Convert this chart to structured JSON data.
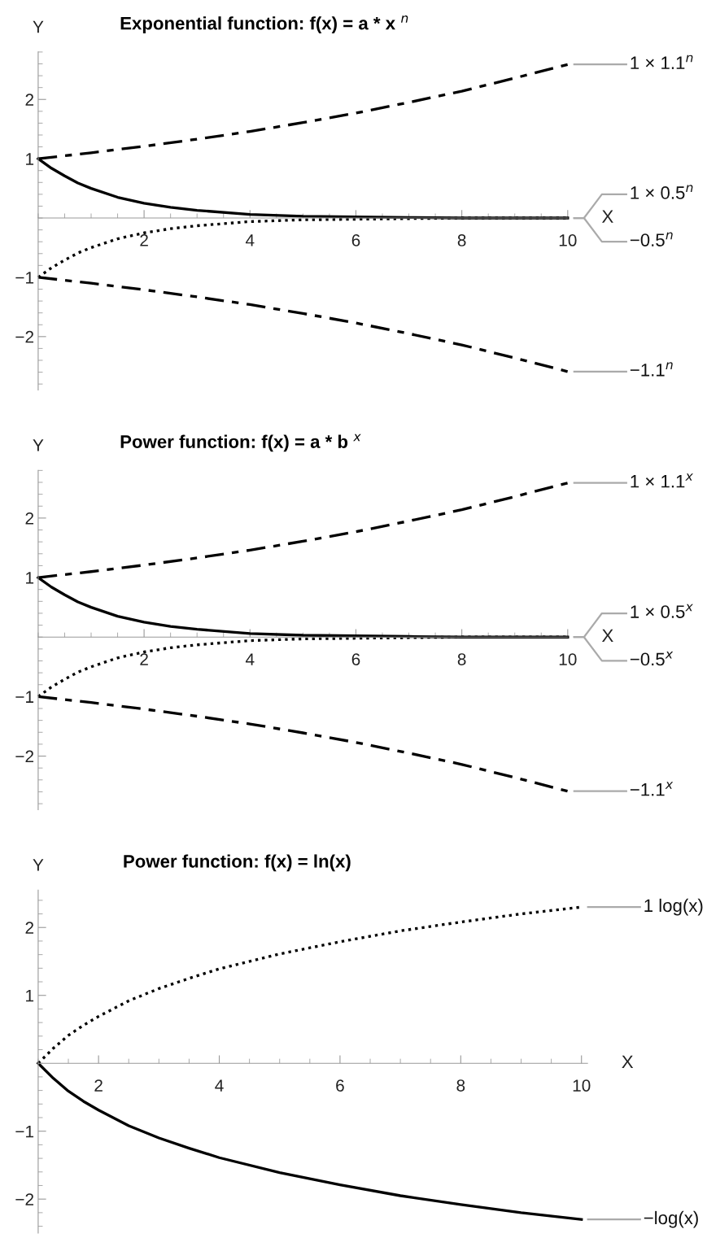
{
  "chart_data": [
    {
      "type": "line",
      "title": "Exponential function: f(x) = a * x $^{n}$",
      "xlabel": "X",
      "ylabel": "Y",
      "xlim": [
        0,
        10
      ],
      "ylim": [
        -2.9,
        2.8
      ],
      "xticks": [
        2,
        4,
        6,
        8,
        10
      ],
      "yticks": [
        -2,
        -1,
        1,
        2
      ],
      "series": [
        {
          "name": "1 × 1.1$^{n}$",
          "color": "#000000",
          "line_style": "dashed",
          "x": [
            0,
            1,
            2,
            3,
            4,
            5,
            6,
            7,
            8,
            9,
            10
          ],
          "values": [
            1,
            1.1,
            1.21,
            1.33,
            1.46,
            1.61,
            1.77,
            1.95,
            2.14,
            2.36,
            2.59
          ]
        },
        {
          "name": "1 × 0.5$^{n}$",
          "color": "#000000",
          "line_style": "solid",
          "x": [
            0,
            0.25,
            0.5,
            0.75,
            1,
            1.5,
            2,
            2.5,
            3,
            4,
            5,
            6,
            7,
            8,
            10
          ],
          "values": [
            1,
            0.84,
            0.71,
            0.59,
            0.5,
            0.35,
            0.25,
            0.18,
            0.13,
            0.06,
            0.03,
            0.02,
            0.01,
            0,
            0
          ]
        },
        {
          "name": "−0.5$^{n}$",
          "color": "#000000",
          "line_style": "dotted",
          "x": [
            0,
            0.25,
            0.5,
            0.75,
            1,
            1.5,
            2,
            2.5,
            3,
            4,
            5,
            6,
            7,
            8,
            10
          ],
          "values": [
            -1,
            -0.84,
            -0.71,
            -0.59,
            -0.5,
            -0.35,
            -0.25,
            -0.18,
            -0.13,
            -0.06,
            -0.03,
            -0.02,
            -0.01,
            0,
            0
          ]
        },
        {
          "name": "−1.1$^{n}$",
          "color": "#000000",
          "line_style": "dashed",
          "x": [
            0,
            1,
            2,
            3,
            4,
            5,
            6,
            7,
            8,
            9,
            10
          ],
          "values": [
            -1,
            -1.1,
            -1.21,
            -1.33,
            -1.46,
            -1.61,
            -1.77,
            -1.95,
            -2.14,
            -2.36,
            -2.59
          ]
        }
      ]
    },
    {
      "type": "line",
      "title": "Power function: f(x) = a * b $^{x}$",
      "xlabel": "X",
      "ylabel": "Y",
      "xlim": [
        0,
        10
      ],
      "ylim": [
        -2.9,
        2.8
      ],
      "xticks": [
        2,
        4,
        6,
        8,
        10
      ],
      "yticks": [
        -2,
        -1,
        1,
        2
      ],
      "series": [
        {
          "name": "1 × 1.1$^{x}$",
          "color": "#000000",
          "line_style": "dashed",
          "x": [
            0,
            1,
            2,
            3,
            4,
            5,
            6,
            7,
            8,
            9,
            10
          ],
          "values": [
            1,
            1.1,
            1.21,
            1.33,
            1.46,
            1.61,
            1.77,
            1.95,
            2.14,
            2.36,
            2.59
          ]
        },
        {
          "name": "1 × 0.5$^{x}$",
          "color": "#000000",
          "line_style": "solid",
          "x": [
            0,
            0.25,
            0.5,
            0.75,
            1,
            1.5,
            2,
            2.5,
            3,
            4,
            5,
            6,
            7,
            8,
            10
          ],
          "values": [
            1,
            0.84,
            0.71,
            0.59,
            0.5,
            0.35,
            0.25,
            0.18,
            0.13,
            0.06,
            0.03,
            0.02,
            0.01,
            0,
            0
          ]
        },
        {
          "name": "−0.5$^{x}$",
          "color": "#000000",
          "line_style": "dotted",
          "x": [
            0,
            0.25,
            0.5,
            0.75,
            1,
            1.5,
            2,
            2.5,
            3,
            4,
            5,
            6,
            7,
            8,
            10
          ],
          "values": [
            -1,
            -0.84,
            -0.71,
            -0.59,
            -0.5,
            -0.35,
            -0.25,
            -0.18,
            -0.13,
            -0.06,
            -0.03,
            -0.02,
            -0.01,
            0,
            0
          ]
        },
        {
          "name": "−1.1$^{x}$",
          "color": "#000000",
          "line_style": "dashed",
          "x": [
            0,
            1,
            2,
            3,
            4,
            5,
            6,
            7,
            8,
            9,
            10
          ],
          "values": [
            -1,
            -1.1,
            -1.21,
            -1.33,
            -1.46,
            -1.61,
            -1.77,
            -1.95,
            -2.14,
            -2.36,
            -2.59
          ]
        }
      ]
    },
    {
      "type": "line",
      "title": "Power function: f(x) = ln(x)",
      "xlabel": "X",
      "ylabel": "Y",
      "xlim": [
        1,
        10.1
      ],
      "ylim": [
        -2.5,
        2.55
      ],
      "xticks": [
        2,
        4,
        6,
        8,
        10
      ],
      "yticks": [
        -2,
        -1,
        1,
        2
      ],
      "series": [
        {
          "name": "1 log(x)",
          "color": "#000000",
          "line_style": "dotted",
          "x": [
            1,
            1.25,
            1.5,
            1.75,
            2,
            2.5,
            3,
            3.5,
            4,
            5,
            6,
            7,
            8,
            9,
            10
          ],
          "values": [
            0,
            0.22,
            0.41,
            0.56,
            0.69,
            0.92,
            1.1,
            1.25,
            1.39,
            1.61,
            1.79,
            1.95,
            2.08,
            2.2,
            2.3
          ]
        },
        {
          "name": "−log(x)",
          "color": "#000000",
          "line_style": "solid",
          "x": [
            1,
            1.25,
            1.5,
            1.75,
            2,
            2.5,
            3,
            3.5,
            4,
            5,
            6,
            7,
            8,
            9,
            10
          ],
          "values": [
            0,
            -0.22,
            -0.41,
            -0.56,
            -0.69,
            -0.92,
            -1.1,
            -1.25,
            -1.39,
            -1.61,
            -1.79,
            -1.95,
            -2.08,
            -2.2,
            -2.3
          ]
        }
      ]
    }
  ]
}
